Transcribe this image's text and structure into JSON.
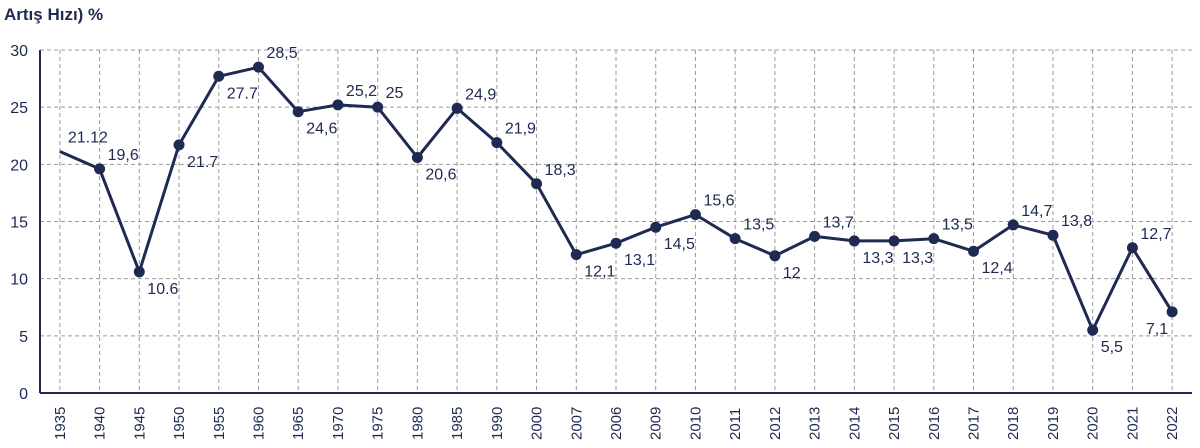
{
  "chart_data": {
    "type": "line",
    "ylabel": "Artış Hızı) %",
    "ylim": [
      0,
      30
    ],
    "yticks": [
      "0",
      "5",
      "10",
      "15",
      "20",
      "25",
      "30"
    ],
    "grid": true,
    "color": "#1e2a52",
    "categories": [
      "1935",
      "1940",
      "1945",
      "1950",
      "1955",
      "1960",
      "1965",
      "1970",
      "1975",
      "1980",
      "1985",
      "1990",
      "2000",
      "2007",
      "2006",
      "2009",
      "2010",
      "2011",
      "2012",
      "2013",
      "2014",
      "2015",
      "2016",
      "2017",
      "2018",
      "2019",
      "2020",
      "2021",
      "2022"
    ],
    "values": [
      21.12,
      19.6,
      10.6,
      21.7,
      27.7,
      28.5,
      24.6,
      25.2,
      25,
      20.6,
      24.9,
      21.9,
      18.3,
      12.1,
      13.1,
      14.5,
      15.6,
      13.5,
      12,
      13.7,
      13.3,
      13.3,
      13.5,
      12.4,
      14.7,
      13.8,
      5.5,
      12.7,
      7.1
    ],
    "labels": [
      "21.12",
      "19,6",
      "10.6",
      "21.7",
      "27.7",
      "28,5",
      "24,6",
      "25,2",
      "25",
      "20,6",
      "24,9",
      "21,9",
      "18,3",
      "12,1",
      "13,1",
      "14,5",
      "15,6",
      "13,5",
      "12",
      "13,7",
      "13,3",
      "13,3",
      "13,5",
      "12,4",
      "14,7",
      "13,8",
      "5,5",
      "12,7",
      "7,1"
    ]
  }
}
